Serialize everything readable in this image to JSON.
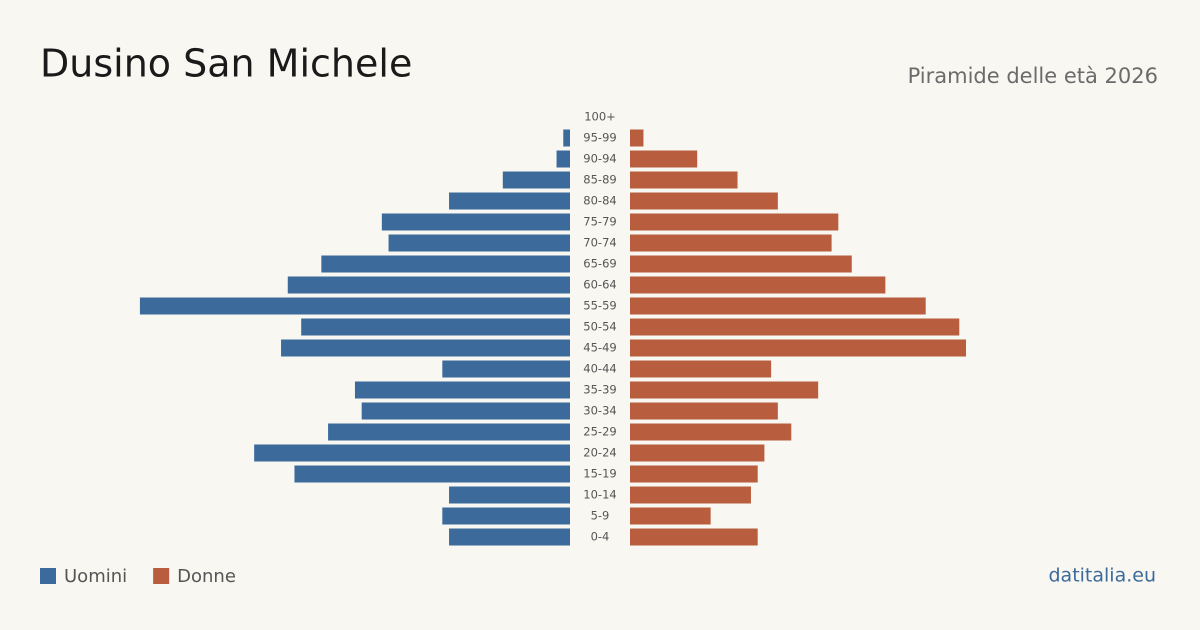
{
  "chart_data": {
    "type": "pyramid",
    "title": "Dusino San Michele",
    "subtitle": "Piramide delle età 2026",
    "source": "datitalia.eu",
    "categories": [
      "100+",
      "95-99",
      "90-94",
      "85-89",
      "80-84",
      "75-79",
      "70-74",
      "65-69",
      "60-64",
      "55-59",
      "50-54",
      "45-49",
      "40-44",
      "35-39",
      "30-34",
      "25-29",
      "20-24",
      "15-19",
      "10-14",
      "5-9",
      "0-4"
    ],
    "series": [
      {
        "name": "Uomini",
        "color": "#3b6a9b",
        "values": [
          0,
          1,
          2,
          10,
          18,
          28,
          27,
          37,
          42,
          64,
          40,
          43,
          19,
          32,
          31,
          36,
          47,
          41,
          18,
          19,
          18
        ]
      },
      {
        "name": "Donne",
        "color": "#b85d3d",
        "values": [
          0,
          2,
          10,
          16,
          22,
          31,
          30,
          33,
          38,
          44,
          49,
          50,
          21,
          28,
          22,
          24,
          20,
          19,
          18,
          12,
          19
        ]
      }
    ],
    "xlim": [
      0,
      70
    ]
  }
}
